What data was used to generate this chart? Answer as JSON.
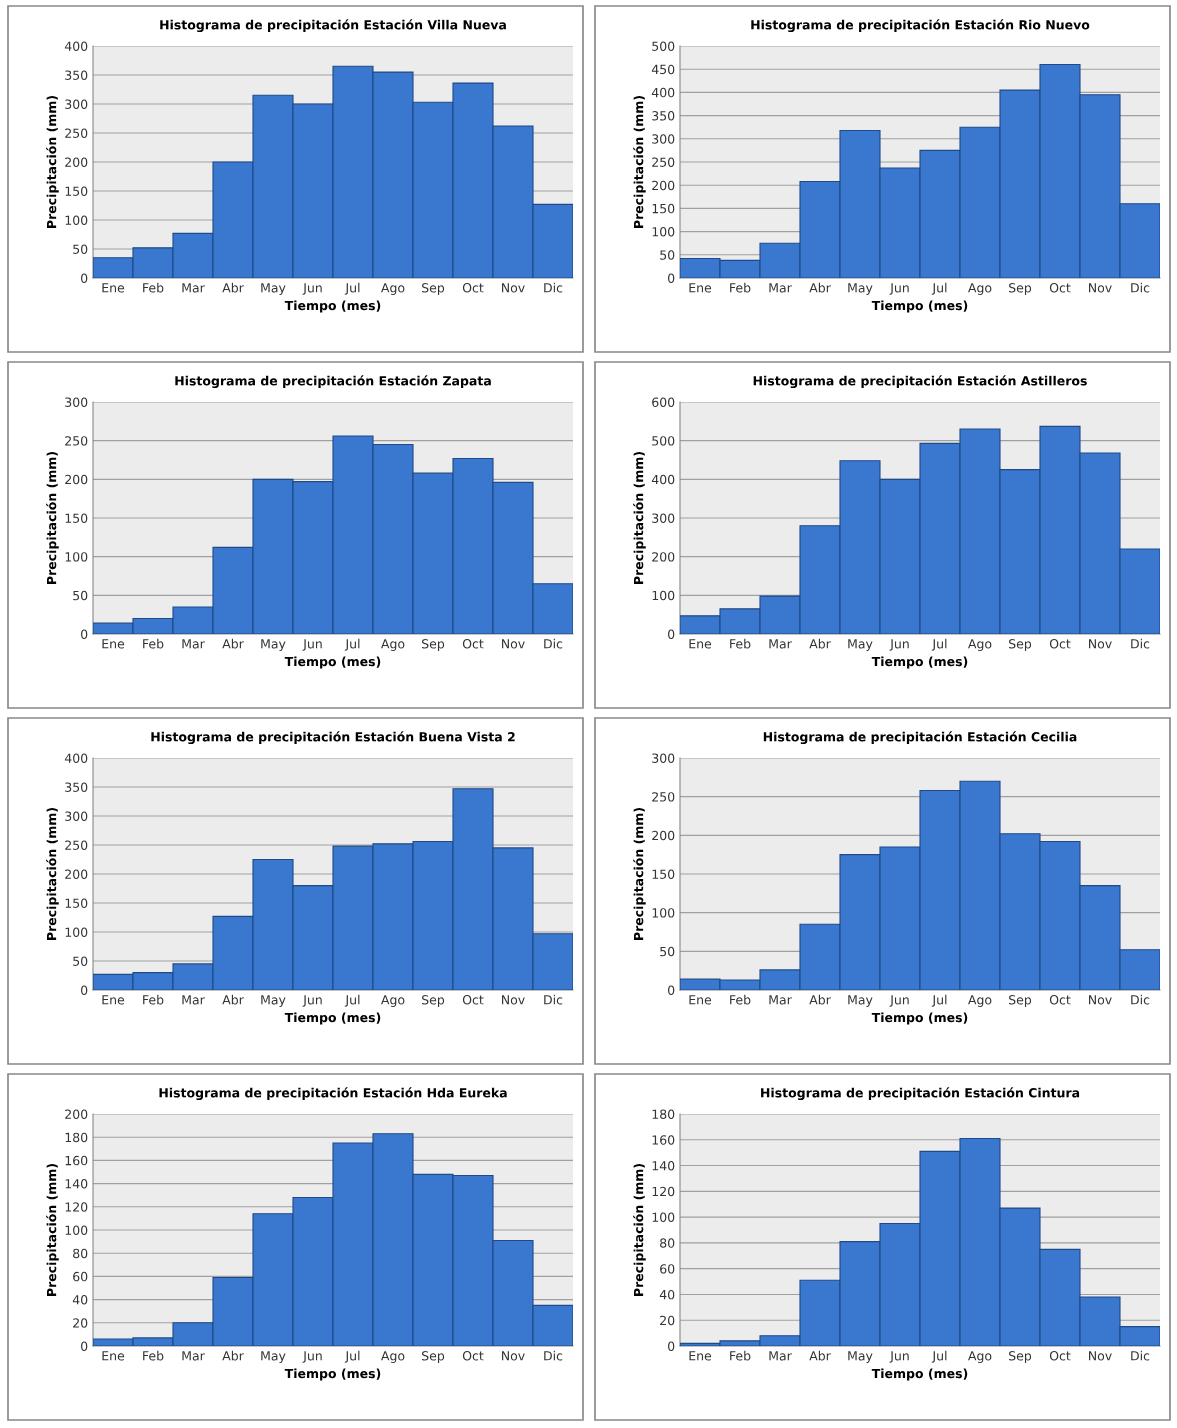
{
  "chart_data": [
    {
      "type": "bar",
      "title": "Histograma de precipitación Estación Villa Nueva",
      "xlabel": "Tiempo (mes)",
      "ylabel": "Precipitación (mm)",
      "categories": [
        "Ene",
        "Feb",
        "Mar",
        "Abr",
        "May",
        "Jun",
        "Jul",
        "Ago",
        "Sep",
        "Oct",
        "Nov",
        "Dic"
      ],
      "values": [
        35,
        52,
        77,
        200,
        315,
        300,
        365,
        355,
        303,
        336,
        262,
        127
      ],
      "color": "#3a78d0",
      "ylim": [
        0,
        400
      ],
      "yticks": [
        0,
        50,
        100,
        150,
        200,
        250,
        300,
        350,
        400
      ],
      "grid": "y",
      "legend": false
    },
    {
      "type": "bar",
      "title": "Histograma de precipitación Estación Rio Nuevo",
      "xlabel": "Tiempo (mes)",
      "ylabel": "Precipitación (mm)",
      "categories": [
        "Ene",
        "Feb",
        "Mar",
        "Abr",
        "May",
        "Jun",
        "Jul",
        "Ago",
        "Sep",
        "Oct",
        "Nov",
        "Dic"
      ],
      "values": [
        42,
        38,
        75,
        208,
        318,
        237,
        275,
        325,
        405,
        460,
        395,
        160
      ],
      "color": "#3a78d0",
      "ylim": [
        0,
        500
      ],
      "yticks": [
        0,
        50,
        100,
        150,
        200,
        250,
        300,
        350,
        400,
        450,
        500
      ],
      "grid": "y",
      "legend": false
    },
    {
      "type": "bar",
      "title": "Histograma de precipitación Estación Zapata",
      "xlabel": "Tiempo (mes)",
      "ylabel": "Precipitación (mm)",
      "categories": [
        "Ene",
        "Feb",
        "Mar",
        "Abr",
        "May",
        "Jun",
        "Jul",
        "Ago",
        "Sep",
        "Oct",
        "Nov",
        "Dic"
      ],
      "values": [
        14,
        20,
        35,
        112,
        200,
        197,
        256,
        245,
        208,
        227,
        196,
        65
      ],
      "color": "#3a78d0",
      "ylim": [
        0,
        300
      ],
      "yticks": [
        0,
        50,
        100,
        150,
        200,
        250,
        300
      ],
      "grid": "y",
      "legend": false
    },
    {
      "type": "bar",
      "title": "Histograma de precipitación Estación Astilleros",
      "xlabel": "Tiempo (mes)",
      "ylabel": "Precipitación (mm)",
      "categories": [
        "Ene",
        "Feb",
        "Mar",
        "Abr",
        "May",
        "Jun",
        "Jul",
        "Ago",
        "Sep",
        "Oct",
        "Nov",
        "Dic"
      ],
      "values": [
        47,
        65,
        98,
        280,
        448,
        400,
        493,
        530,
        425,
        537,
        468,
        220
      ],
      "color": "#3a78d0",
      "ylim": [
        0,
        600
      ],
      "yticks": [
        0,
        100,
        200,
        300,
        400,
        500,
        600
      ],
      "grid": "y",
      "legend": false
    },
    {
      "type": "bar",
      "title": "Histograma de precipitación Estación Buena Vista 2",
      "xlabel": "Tiempo (mes)",
      "ylabel": "Precipitación (mm)",
      "categories": [
        "Ene",
        "Feb",
        "Mar",
        "Abr",
        "May",
        "Jun",
        "Jul",
        "Ago",
        "Sep",
        "Oct",
        "Nov",
        "Dic"
      ],
      "values": [
        27,
        30,
        45,
        127,
        225,
        180,
        248,
        252,
        256,
        347,
        245,
        97
      ],
      "color": "#3a78d0",
      "ylim": [
        0,
        400
      ],
      "yticks": [
        0,
        50,
        100,
        150,
        200,
        250,
        300,
        350,
        400
      ],
      "grid": "y",
      "legend": false
    },
    {
      "type": "bar",
      "title": "Histograma de precipitación Estación Cecilia",
      "xlabel": "Tiempo (mes)",
      "ylabel": "Precipitación (mm)",
      "categories": [
        "Ene",
        "Feb",
        "Mar",
        "Abr",
        "May",
        "Jun",
        "Jul",
        "Ago",
        "Sep",
        "Oct",
        "Nov",
        "Dic"
      ],
      "values": [
        14,
        13,
        26,
        85,
        175,
        185,
        258,
        270,
        202,
        192,
        135,
        52
      ],
      "color": "#3a78d0",
      "ylim": [
        0,
        300
      ],
      "yticks": [
        0,
        50,
        100,
        150,
        200,
        250,
        300
      ],
      "grid": "y",
      "legend": false
    },
    {
      "type": "bar",
      "title": "Histograma de precipitación Estación Hda Eureka",
      "xlabel": "Tiempo (mes)",
      "ylabel": "Precipitación (mm)",
      "categories": [
        "Ene",
        "Feb",
        "Mar",
        "Abr",
        "May",
        "Jun",
        "Jul",
        "Ago",
        "Sep",
        "Oct",
        "Nov",
        "Dic"
      ],
      "values": [
        6,
        7,
        20,
        59,
        114,
        128,
        175,
        183,
        148,
        147,
        91,
        35
      ],
      "color": "#3a78d0",
      "ylim": [
        0,
        200
      ],
      "yticks": [
        0,
        20,
        40,
        60,
        80,
        100,
        120,
        140,
        160,
        180,
        200
      ],
      "grid": "y",
      "legend": false
    },
    {
      "type": "bar",
      "title": "Histograma de precipitación Estación Cintura",
      "xlabel": "Tiempo (mes)",
      "ylabel": "Precipitación (mm)",
      "categories": [
        "Ene",
        "Feb",
        "Mar",
        "Abr",
        "May",
        "Jun",
        "Jul",
        "Ago",
        "Sep",
        "Oct",
        "Nov",
        "Dic"
      ],
      "values": [
        2,
        4,
        8,
        51,
        81,
        95,
        151,
        161,
        107,
        75,
        38,
        15
      ],
      "color": "#3a78d0",
      "ylim": [
        0,
        180
      ],
      "yticks": [
        0,
        20,
        40,
        60,
        80,
        100,
        120,
        140,
        160,
        180
      ],
      "grid": "y",
      "legend": false
    }
  ]
}
